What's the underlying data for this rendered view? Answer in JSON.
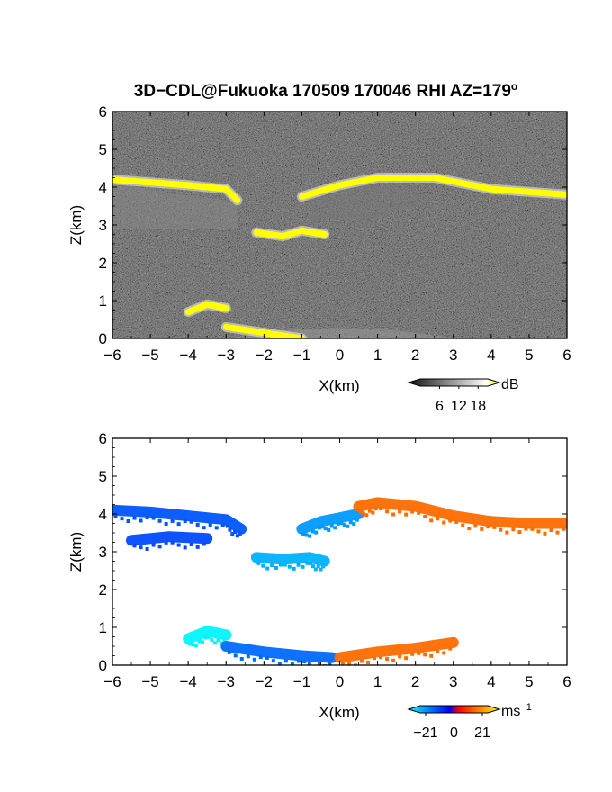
{
  "chart_data": [
    {
      "type": "heatmap",
      "title": "3D−CDL@Fukuoka 170509 170046 RHI AZ=179",
      "title_superscript": "o",
      "xlabel": "X(km)",
      "ylabel": "Z(km)",
      "xlim": [
        -6,
        6
      ],
      "ylim": [
        0,
        6
      ],
      "xticks": [
        "−6",
        "−5",
        "−4",
        "−3",
        "−2",
        "−1",
        "0",
        "1",
        "2",
        "3",
        "4",
        "5",
        "6"
      ],
      "yticks": [
        "0",
        "1",
        "2",
        "3",
        "4",
        "5",
        "6"
      ],
      "background": "noise-gray",
      "colorbar": {
        "unit": "dB",
        "ticks": [
          "6",
          "12",
          "18"
        ],
        "range": [
          0,
          21
        ],
        "colors": [
          "#111111",
          "#ffffff",
          "#ffff00"
        ]
      },
      "features": [
        {
          "name": "cloud-top-layer-left",
          "x": [
            -6.0,
            -4.0,
            -3.0,
            -2.7
          ],
          "z": [
            4.2,
            4.05,
            3.95,
            3.65
          ],
          "value_db": 18
        },
        {
          "name": "cloud-top-layer-right",
          "x": [
            -1.0,
            0.0,
            1.0,
            2.5,
            4.0,
            6.0
          ],
          "z": [
            3.75,
            4.05,
            4.25,
            4.25,
            3.95,
            3.8
          ],
          "value_db": 18
        },
        {
          "name": "mid-layer-echo",
          "x": [
            -2.2,
            -1.5,
            -1.0,
            -0.4
          ],
          "z": [
            2.8,
            2.7,
            2.85,
            2.75
          ],
          "value_db": 18
        },
        {
          "name": "low-echo-left",
          "x": [
            -4.0,
            -3.5,
            -3.0
          ],
          "z": [
            0.7,
            0.9,
            0.8
          ],
          "value_db": 18
        },
        {
          "name": "ground-echo",
          "x": [
            -3.0,
            -2.0,
            -1.0
          ],
          "z": [
            0.3,
            0.15,
            0.0
          ],
          "value_db": 18
        }
      ]
    },
    {
      "type": "heatmap",
      "xlabel": "X(km)",
      "ylabel": "Z(km)",
      "xlim": [
        -6,
        6
      ],
      "ylim": [
        0,
        6
      ],
      "xticks": [
        "−6",
        "−5",
        "−4",
        "−3",
        "−2",
        "−1",
        "0",
        "1",
        "2",
        "3",
        "4",
        "5",
        "6"
      ],
      "yticks": [
        "0",
        "1",
        "2",
        "3",
        "4",
        "5",
        "6"
      ],
      "colorbar": {
        "unit": "ms",
        "unit_superscript": "−1",
        "ticks": [
          "−21",
          "0",
          "21"
        ],
        "range": [
          -25,
          25
        ],
        "colors": [
          "#00ffff",
          "#0000ff",
          "#ff0000",
          "#ffff00"
        ]
      },
      "regions": [
        {
          "name": "layer-left",
          "x": [
            -6.0,
            -5.0,
            -4.0,
            -3.0,
            -2.6
          ],
          "z": [
            4.1,
            4.05,
            3.95,
            3.85,
            3.6
          ],
          "velocity": -10
        },
        {
          "name": "layer-left-lower",
          "x": [
            -5.5,
            -4.5,
            -3.5
          ],
          "z": [
            3.3,
            3.4,
            3.35
          ],
          "velocity": -9
        },
        {
          "name": "mid-layer",
          "x": [
            -2.2,
            -1.5,
            -0.8,
            -0.4
          ],
          "z": [
            2.85,
            2.8,
            2.85,
            2.75
          ],
          "velocity": -18
        },
        {
          "name": "rising-segment",
          "x": [
            -1.0,
            -0.5,
            0.0,
            0.5
          ],
          "z": [
            3.6,
            3.8,
            3.9,
            4.0
          ],
          "velocity": -16
        },
        {
          "name": "top-layer-right",
          "x": [
            0.5,
            1.0,
            2.0,
            3.0,
            4.0,
            5.0,
            6.0
          ],
          "z": [
            4.2,
            4.3,
            4.2,
            3.95,
            3.8,
            3.75,
            3.75
          ],
          "velocity": 12
        },
        {
          "name": "low-left",
          "x": [
            -4.0,
            -3.5,
            -3.0
          ],
          "z": [
            0.7,
            0.9,
            0.8
          ],
          "velocity": -24
        },
        {
          "name": "low-negative",
          "x": [
            -3.0,
            -2.0,
            -1.0,
            -0.2
          ],
          "z": [
            0.5,
            0.35,
            0.25,
            0.2
          ],
          "velocity": -12
        },
        {
          "name": "low-positive",
          "x": [
            0.0,
            1.0,
            2.0,
            3.0
          ],
          "z": [
            0.2,
            0.35,
            0.45,
            0.6
          ],
          "velocity": 12
        }
      ]
    }
  ]
}
